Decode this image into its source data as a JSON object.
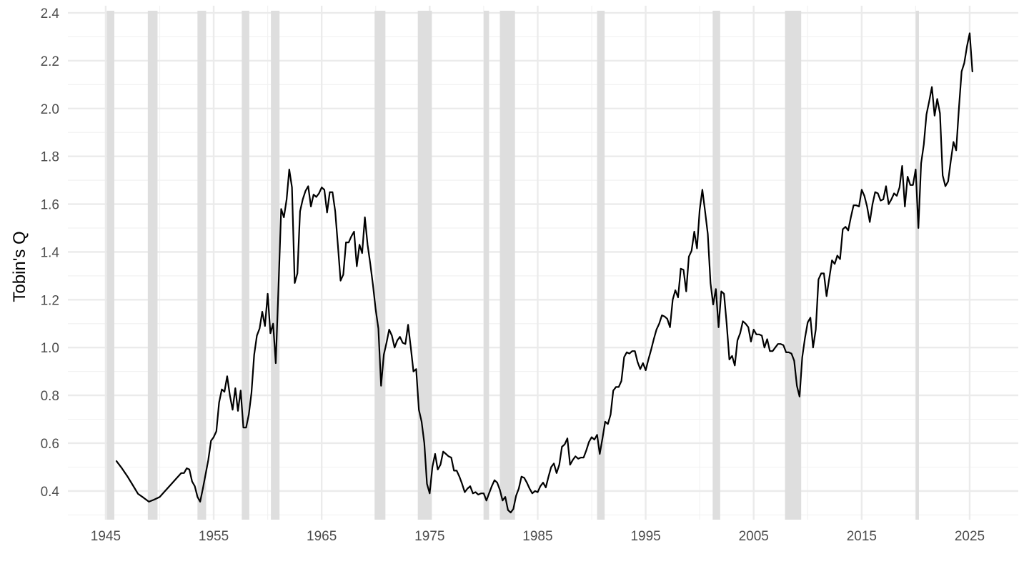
{
  "chart_data": {
    "type": "line",
    "ylabel": "Tobin's Q",
    "xlabel": "",
    "title": "",
    "xlim": [
      1941.5,
      2029.5
    ],
    "ylim": [
      0.28,
      2.43
    ],
    "x_ticks": [
      1945,
      1955,
      1965,
      1975,
      1985,
      1995,
      2005,
      2015,
      2025
    ],
    "x_tick_labels": [
      "1945",
      "1955",
      "1965",
      "1975",
      "1985",
      "1995",
      "2005",
      "2015",
      "2025"
    ],
    "y_ticks": [
      0.4,
      0.6,
      0.8,
      1.0,
      1.2,
      1.4,
      1.6,
      1.8,
      2.0,
      2.2,
      2.4
    ],
    "y_tick_labels": [
      "0.4",
      "0.6",
      "0.8",
      "1.0",
      "1.2",
      "1.4",
      "1.6",
      "1.8",
      "2.0",
      "2.2",
      "2.4"
    ],
    "grid": true,
    "recessions": [
      [
        1945.1,
        1945.8
      ],
      [
        1948.9,
        1949.8
      ],
      [
        1953.5,
        1954.3
      ],
      [
        1957.6,
        1958.3
      ],
      [
        1960.3,
        1961.1
      ],
      [
        1969.9,
        1970.9
      ],
      [
        1973.9,
        1975.2
      ],
      [
        1980.0,
        1980.5
      ],
      [
        1981.5,
        1982.9
      ],
      [
        1990.5,
        1991.2
      ],
      [
        2001.2,
        2001.9
      ],
      [
        2007.9,
        2009.4
      ],
      [
        2020.0,
        2020.3
      ]
    ],
    "series": [
      {
        "color": "#000000",
        "x": [
          1946.0,
          1946.5,
          1947.0,
          1947.5,
          1948.0,
          1948.5,
          1949.0,
          1949.5,
          1950.0,
          1950.5,
          1951.0,
          1951.5,
          1952.0,
          1952.25,
          1952.5,
          1952.75,
          1953.0,
          1953.25,
          1953.5,
          1953.75,
          1954.0,
          1954.25,
          1954.5,
          1954.75,
          1955.0,
          1955.25,
          1955.5,
          1955.75,
          1956.0,
          1956.25,
          1956.5,
          1956.75,
          1957.0,
          1957.25,
          1957.5,
          1957.75,
          1958.0,
          1958.25,
          1958.5,
          1958.75,
          1959.0,
          1959.25,
          1959.5,
          1959.75,
          1960.0,
          1960.25,
          1960.5,
          1960.75,
          1961.0,
          1961.25,
          1961.5,
          1961.75,
          1962.0,
          1962.25,
          1962.5,
          1962.75,
          1963.0,
          1963.25,
          1963.5,
          1963.75,
          1964.0,
          1964.25,
          1964.5,
          1964.75,
          1965.0,
          1965.25,
          1965.5,
          1965.75,
          1966.0,
          1966.25,
          1966.5,
          1966.75,
          1967.0,
          1967.25,
          1967.5,
          1967.75,
          1968.0,
          1968.25,
          1968.5,
          1968.75,
          1969.0,
          1969.25,
          1969.5,
          1969.75,
          1970.0,
          1970.25,
          1970.5,
          1970.75,
          1971.0,
          1971.25,
          1971.5,
          1971.75,
          1972.0,
          1972.25,
          1972.5,
          1972.75,
          1973.0,
          1973.25,
          1973.5,
          1973.75,
          1974.0,
          1974.25,
          1974.5,
          1974.75,
          1975.0,
          1975.25,
          1975.5,
          1975.75,
          1976.0,
          1976.25,
          1976.5,
          1976.75,
          1977.0,
          1977.25,
          1977.5,
          1977.75,
          1978.0,
          1978.25,
          1978.5,
          1978.75,
          1979.0,
          1979.25,
          1979.5,
          1979.75,
          1980.0,
          1980.25,
          1980.5,
          1980.75,
          1981.0,
          1981.25,
          1981.5,
          1981.75,
          1982.0,
          1982.25,
          1982.5,
          1982.75,
          1983.0,
          1983.25,
          1983.5,
          1983.75,
          1984.0,
          1984.25,
          1984.5,
          1984.75,
          1985.0,
          1985.25,
          1985.5,
          1985.75,
          1986.0,
          1986.25,
          1986.5,
          1986.75,
          1987.0,
          1987.25,
          1987.5,
          1987.75,
          1988.0,
          1988.25,
          1988.5,
          1988.75,
          1989.0,
          1989.25,
          1989.5,
          1989.75,
          1990.0,
          1990.25,
          1990.5,
          1990.75,
          1991.0,
          1991.25,
          1991.5,
          1991.75,
          1992.0,
          1992.25,
          1992.5,
          1992.75,
          1993.0,
          1993.25,
          1993.5,
          1993.75,
          1994.0,
          1994.25,
          1994.5,
          1994.75,
          1995.0,
          1995.25,
          1995.5,
          1995.75,
          1996.0,
          1996.25,
          1996.5,
          1996.75,
          1997.0,
          1997.25,
          1997.5,
          1997.75,
          1998.0,
          1998.25,
          1998.5,
          1998.75,
          1999.0,
          1999.25,
          1999.5,
          1999.75,
          2000.0,
          2000.25,
          2000.5,
          2000.75,
          2001.0,
          2001.25,
          2001.5,
          2001.75,
          2002.0,
          2002.25,
          2002.5,
          2002.75,
          2003.0,
          2003.25,
          2003.5,
          2003.75,
          2004.0,
          2004.25,
          2004.5,
          2004.75,
          2005.0,
          2005.25,
          2005.5,
          2005.75,
          2006.0,
          2006.25,
          2006.5,
          2006.75,
          2007.0,
          2007.25,
          2007.5,
          2007.75,
          2008.0,
          2008.25,
          2008.5,
          2008.75,
          2009.0,
          2009.25,
          2009.5,
          2009.75,
          2010.0,
          2010.25,
          2010.5,
          2010.75,
          2011.0,
          2011.25,
          2011.5,
          2011.75,
          2012.0,
          2012.25,
          2012.5,
          2012.75,
          2013.0,
          2013.25,
          2013.5,
          2013.75,
          2014.0,
          2014.25,
          2014.5,
          2014.75,
          2015.0,
          2015.25,
          2015.5,
          2015.75,
          2016.0,
          2016.25,
          2016.5,
          2016.75,
          2017.0,
          2017.25,
          2017.5,
          2017.75,
          2018.0,
          2018.25,
          2018.5,
          2018.75,
          2019.0,
          2019.25,
          2019.5,
          2019.75,
          2020.0,
          2020.25,
          2020.5,
          2020.75,
          2021.0,
          2021.25,
          2021.5,
          2021.75,
          2022.0,
          2022.25,
          2022.5,
          2022.75,
          2023.0,
          2023.25,
          2023.5,
          2023.75,
          2024.0,
          2024.25,
          2024.5,
          2024.75,
          2025.0,
          2025.25
        ],
        "y": [
          0.525,
          0.495,
          0.462,
          0.425,
          0.388,
          0.372,
          0.355,
          0.364,
          0.375,
          0.4,
          0.425,
          0.45,
          0.475,
          0.475,
          0.495,
          0.49,
          0.44,
          0.42,
          0.375,
          0.355,
          0.41,
          0.47,
          0.53,
          0.61,
          0.625,
          0.65,
          0.77,
          0.825,
          0.815,
          0.88,
          0.8,
          0.74,
          0.83,
          0.735,
          0.82,
          0.665,
          0.665,
          0.72,
          0.81,
          0.97,
          1.05,
          1.08,
          1.15,
          1.09,
          1.225,
          1.06,
          1.1,
          0.935,
          1.25,
          1.58,
          1.545,
          1.62,
          1.745,
          1.67,
          1.27,
          1.31,
          1.57,
          1.62,
          1.655,
          1.675,
          1.59,
          1.64,
          1.63,
          1.645,
          1.67,
          1.66,
          1.565,
          1.65,
          1.65,
          1.57,
          1.43,
          1.28,
          1.305,
          1.44,
          1.44,
          1.465,
          1.485,
          1.34,
          1.43,
          1.395,
          1.545,
          1.43,
          1.35,
          1.26,
          1.16,
          1.08,
          0.84,
          0.97,
          1.02,
          1.075,
          1.05,
          1.0,
          1.03,
          1.045,
          1.02,
          1.015,
          1.095,
          1.0,
          0.9,
          0.91,
          0.74,
          0.69,
          0.6,
          0.43,
          0.39,
          0.5,
          0.555,
          0.49,
          0.51,
          0.565,
          0.555,
          0.545,
          0.54,
          0.485,
          0.485,
          0.46,
          0.43,
          0.395,
          0.41,
          0.42,
          0.39,
          0.395,
          0.385,
          0.39,
          0.39,
          0.36,
          0.39,
          0.42,
          0.445,
          0.435,
          0.405,
          0.36,
          0.375,
          0.32,
          0.31,
          0.325,
          0.38,
          0.41,
          0.46,
          0.455,
          0.435,
          0.41,
          0.39,
          0.4,
          0.395,
          0.42,
          0.435,
          0.415,
          0.46,
          0.5,
          0.515,
          0.475,
          0.51,
          0.585,
          0.595,
          0.62,
          0.51,
          0.53,
          0.545,
          0.535,
          0.54,
          0.54,
          0.57,
          0.605,
          0.625,
          0.615,
          0.635,
          0.555,
          0.62,
          0.69,
          0.68,
          0.72,
          0.82,
          0.835,
          0.835,
          0.86,
          0.96,
          0.98,
          0.975,
          0.985,
          0.985,
          0.94,
          0.91,
          0.935,
          0.905,
          0.95,
          0.99,
          1.035,
          1.075,
          1.1,
          1.135,
          1.13,
          1.12,
          1.085,
          1.2,
          1.24,
          1.21,
          1.33,
          1.325,
          1.235,
          1.38,
          1.405,
          1.485,
          1.415,
          1.575,
          1.66,
          1.57,
          1.475,
          1.27,
          1.18,
          1.245,
          1.085,
          1.235,
          1.225,
          1.1,
          0.95,
          0.965,
          0.925,
          1.03,
          1.06,
          1.11,
          1.1,
          1.085,
          1.025,
          1.075,
          1.055,
          1.055,
          1.05,
          1.0,
          1.035,
          0.985,
          0.985,
          1.0,
          1.015,
          1.015,
          1.01,
          0.98,
          0.98,
          0.975,
          0.945,
          0.84,
          0.795,
          0.96,
          1.04,
          1.105,
          1.125,
          1.0,
          1.075,
          1.285,
          1.31,
          1.31,
          1.215,
          1.29,
          1.365,
          1.35,
          1.385,
          1.37,
          1.495,
          1.505,
          1.49,
          1.545,
          1.595,
          1.595,
          1.59,
          1.66,
          1.635,
          1.59,
          1.525,
          1.6,
          1.65,
          1.645,
          1.615,
          1.62,
          1.675,
          1.6,
          1.62,
          1.645,
          1.635,
          1.67,
          1.76,
          1.59,
          1.715,
          1.68,
          1.68,
          1.745,
          1.5,
          1.77,
          1.85,
          1.975,
          2.03,
          2.09,
          1.97,
          2.04,
          1.98,
          1.72,
          1.675,
          1.695,
          1.78,
          1.86,
          1.825,
          2.0,
          2.155,
          2.19,
          2.26,
          2.315,
          2.155
        ]
      }
    ]
  }
}
